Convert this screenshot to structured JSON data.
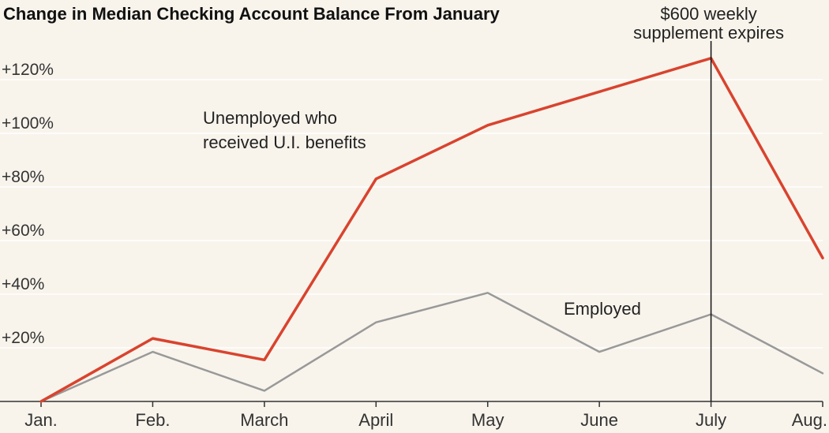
{
  "chart_data": {
    "type": "line",
    "title": "Change in Median Checking Account Balance From January",
    "categories": [
      "Jan.",
      "Feb.",
      "March",
      "April",
      "May",
      "June",
      "July",
      "Aug."
    ],
    "yticks": [
      20,
      40,
      60,
      80,
      100,
      120
    ],
    "ytick_labels": [
      "+20%",
      "+40%",
      "+60%",
      "+80%",
      "+100%",
      "+120%"
    ],
    "ylim": [
      0,
      135
    ],
    "grid": true,
    "legend": "inline labels",
    "series": [
      {
        "name": "Unemployed who received U.I. benefits",
        "label_lines": [
          "Unemployed who",
          "received U.I. benefits"
        ],
        "color": "#d9432e",
        "values": [
          0,
          23.5,
          15.5,
          83,
          103,
          115.5,
          128,
          53.5
        ]
      },
      {
        "name": "Employed",
        "label_lines": [
          "Employed"
        ],
        "color": "#999999",
        "values": [
          0,
          18.5,
          4,
          29.5,
          40.5,
          18.5,
          32.5,
          10.5
        ]
      }
    ],
    "annotation": {
      "category": "July",
      "text_lines": [
        "$600 weekly",
        "supplement expires"
      ]
    }
  }
}
